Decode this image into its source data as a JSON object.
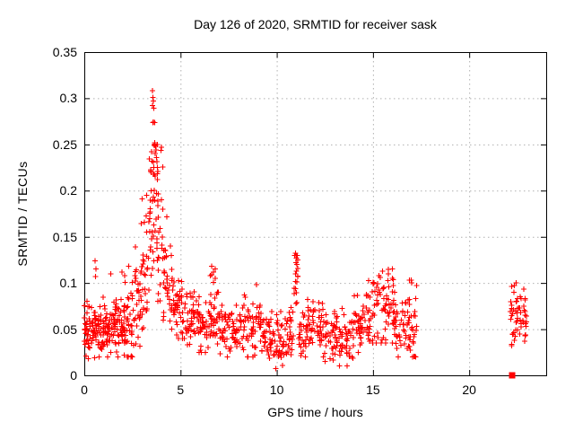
{
  "title": "Day 126 of 2020, SRMTID for receiver sask",
  "colors": {
    "marker": "#ff0000",
    "grid": "#b0b0b0",
    "axis": "#000000",
    "background": "#ffffff",
    "text": "#000000"
  },
  "chart_data": {
    "type": "scatter",
    "title": "Day 126 of 2020, SRMTID for receiver sask",
    "xlabel": "GPS time / hours",
    "ylabel": "SRMTID / TECUs",
    "xlim": [
      0,
      24
    ],
    "ylim": [
      0,
      0.35
    ],
    "xticks": [
      0,
      5,
      10,
      15,
      20
    ],
    "yticks": [
      0,
      0.05,
      0.1,
      0.15,
      0.2,
      0.25,
      0.3,
      0.35
    ],
    "xtick_labels": [
      "0",
      "5",
      "10",
      "15",
      "20"
    ],
    "ytick_labels": [
      "0",
      "0.05",
      "0.1",
      "0.15",
      "0.2",
      "0.25",
      "0.3",
      "0.35"
    ],
    "grid": true,
    "legend": "none",
    "marker": {
      "type": "plus",
      "color": "#ff0000",
      "size": 7
    },
    "description": "Dense scatter of SRMTID values vs GPS time; quiet band near 0.05 TECUs, strong peak to 0.31 near hour 3.7, secondary spikes near hours 6.7, 11.0 and 15.5, data gap from hour 17.3 to 22.1, final cluster near hour 22.2-23.0, one square marker at (22.2, 0).",
    "generator": {
      "seed": 42,
      "epoch_quantize_hours": 0.0166667,
      "bins": [
        [
          0.0,
          0.5,
          45,
          0.048,
          0.013,
          0.018,
          0.095
        ],
        [
          0.5,
          1.0,
          45,
          0.047,
          0.014,
          0.018,
          0.1
        ],
        [
          1.0,
          1.5,
          45,
          0.046,
          0.013,
          0.02,
          0.09
        ],
        [
          1.5,
          2.0,
          45,
          0.05,
          0.016,
          0.02,
          0.11
        ],
        [
          2.0,
          2.5,
          45,
          0.056,
          0.018,
          0.02,
          0.12
        ],
        [
          2.5,
          2.9,
          30,
          0.08,
          0.025,
          0.03,
          0.16
        ],
        [
          2.9,
          3.2,
          24,
          0.11,
          0.035,
          0.05,
          0.21
        ],
        [
          3.2,
          3.5,
          26,
          0.155,
          0.045,
          0.07,
          0.26
        ],
        [
          3.5,
          3.8,
          28,
          0.185,
          0.05,
          0.09,
          0.3
        ],
        [
          3.8,
          4.1,
          26,
          0.155,
          0.045,
          0.08,
          0.25
        ],
        [
          4.1,
          4.4,
          24,
          0.11,
          0.03,
          0.06,
          0.18
        ],
        [
          4.4,
          4.8,
          28,
          0.085,
          0.022,
          0.05,
          0.14
        ],
        [
          4.8,
          5.2,
          30,
          0.07,
          0.018,
          0.04,
          0.11
        ],
        [
          5.2,
          5.8,
          38,
          0.06,
          0.016,
          0.03,
          0.1
        ],
        [
          5.8,
          6.4,
          38,
          0.055,
          0.016,
          0.025,
          0.1
        ],
        [
          6.4,
          7.0,
          38,
          0.065,
          0.022,
          0.03,
          0.115
        ],
        [
          7.0,
          7.6,
          38,
          0.05,
          0.015,
          0.02,
          0.09
        ],
        [
          7.6,
          8.3,
          42,
          0.048,
          0.015,
          0.018,
          0.09
        ],
        [
          8.3,
          9.2,
          52,
          0.055,
          0.018,
          0.02,
          0.1
        ],
        [
          9.2,
          9.7,
          30,
          0.042,
          0.015,
          0.012,
          0.08
        ],
        [
          9.7,
          10.4,
          42,
          0.036,
          0.014,
          0.006,
          0.07
        ],
        [
          10.4,
          10.9,
          30,
          0.05,
          0.016,
          0.02,
          0.09
        ],
        [
          10.9,
          11.15,
          16,
          0.08,
          0.03,
          0.04,
          0.13
        ],
        [
          11.15,
          11.8,
          40,
          0.05,
          0.016,
          0.02,
          0.095
        ],
        [
          11.8,
          12.5,
          42,
          0.052,
          0.016,
          0.02,
          0.09
        ],
        [
          12.5,
          13.2,
          42,
          0.046,
          0.016,
          0.012,
          0.085
        ],
        [
          13.2,
          14.0,
          46,
          0.042,
          0.015,
          0.01,
          0.08
        ],
        [
          14.0,
          14.7,
          42,
          0.055,
          0.016,
          0.025,
          0.095
        ],
        [
          14.7,
          15.4,
          42,
          0.07,
          0.02,
          0.035,
          0.11
        ],
        [
          15.4,
          16.1,
          42,
          0.074,
          0.02,
          0.035,
          0.115
        ],
        [
          16.1,
          16.6,
          30,
          0.055,
          0.018,
          0.02,
          0.095
        ],
        [
          16.6,
          17.05,
          30,
          0.06,
          0.022,
          0.025,
          0.105
        ],
        [
          17.05,
          17.3,
          16,
          0.05,
          0.02,
          0.02,
          0.1
        ],
        [
          22.15,
          23.0,
          55,
          0.062,
          0.018,
          0.027,
          0.1
        ]
      ],
      "outliers": [
        [
          0.56,
          0.124
        ],
        [
          0.6,
          0.115
        ],
        [
          0.58,
          0.107
        ],
        [
          1.37,
          0.11
        ],
        [
          1.95,
          0.112
        ],
        [
          2.1,
          0.108
        ],
        [
          2.3,
          0.118
        ],
        [
          3.54,
          0.308
        ],
        [
          3.56,
          0.301
        ],
        [
          3.58,
          0.297
        ],
        [
          3.55,
          0.292
        ],
        [
          3.6,
          0.289
        ],
        [
          3.59,
          0.274
        ],
        [
          3.66,
          0.252
        ],
        [
          3.7,
          0.248
        ],
        [
          3.73,
          0.244
        ],
        [
          3.68,
          0.24
        ],
        [
          3.76,
          0.236
        ],
        [
          3.52,
          0.232
        ],
        [
          3.62,
          0.225
        ],
        [
          3.64,
          0.218
        ],
        [
          3.8,
          0.212
        ],
        [
          3.47,
          0.2
        ],
        [
          6.55,
          0.108
        ],
        [
          6.62,
          0.118
        ],
        [
          6.7,
          0.112
        ],
        [
          6.8,
          0.105
        ],
        [
          8.95,
          0.098
        ],
        [
          10.97,
          0.132
        ],
        [
          11.0,
          0.13
        ],
        [
          11.02,
          0.127
        ],
        [
          10.99,
          0.122
        ],
        [
          11.04,
          0.12
        ],
        [
          11.01,
          0.113
        ],
        [
          10.98,
          0.11
        ],
        [
          11.05,
          0.101
        ],
        [
          15.3,
          0.108
        ],
        [
          15.5,
          0.113
        ],
        [
          15.8,
          0.11
        ],
        [
          16.0,
          0.105
        ],
        [
          16.9,
          0.103
        ],
        [
          17.0,
          0.1
        ],
        [
          22.45,
          0.1
        ],
        [
          22.35,
          0.097
        ]
      ],
      "special_points": [
        {
          "t": 22.23,
          "v": 0.0,
          "marker": "square"
        }
      ]
    }
  }
}
